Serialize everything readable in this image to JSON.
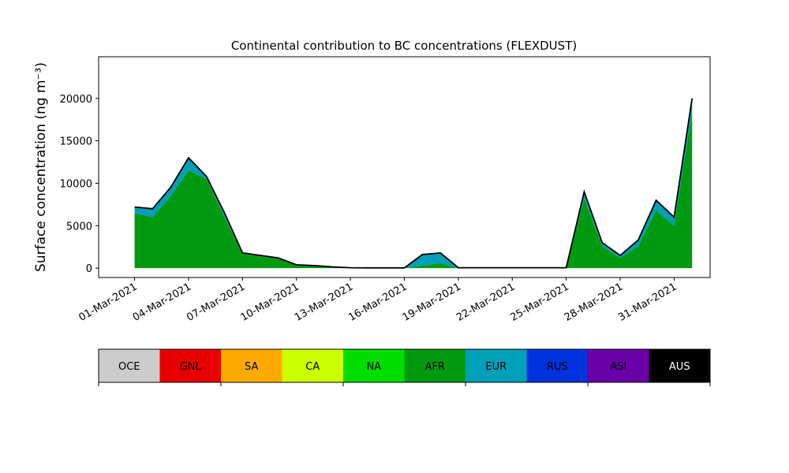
{
  "chart_data": {
    "type": "stacked_area",
    "title": "Continental contribution to BC concentrations (FLEXDUST)",
    "ylabel": "Surface concentration (ng m⁻³)",
    "x": [
      "2021-03-01",
      "2021-03-02",
      "2021-03-03",
      "2021-03-04",
      "2021-03-05",
      "2021-03-06",
      "2021-03-07",
      "2021-03-08",
      "2021-03-09",
      "2021-03-10",
      "2021-03-11",
      "2021-03-12",
      "2021-03-13",
      "2021-03-14",
      "2021-03-15",
      "2021-03-16",
      "2021-03-17",
      "2021-03-18",
      "2021-03-19",
      "2021-03-20",
      "2021-03-21",
      "2021-03-22",
      "2021-03-23",
      "2021-03-24",
      "2021-03-25",
      "2021-03-26",
      "2021-03-27",
      "2021-03-28",
      "2021-03-29",
      "2021-03-30",
      "2021-03-31",
      "2021-04-01"
    ],
    "series": [
      {
        "name": "AFR",
        "color": "#009a10",
        "values": [
          6500,
          6000,
          8500,
          11500,
          10500,
          6000,
          1700,
          1400,
          1100,
          380,
          280,
          140,
          45,
          25,
          25,
          20,
          300,
          600,
          20,
          20,
          20,
          20,
          20,
          20,
          20,
          8200,
          2600,
          1200,
          2600,
          6800,
          5000,
          18500
        ]
      },
      {
        "name": "EUR",
        "color": "#00a0b8",
        "values": [
          700,
          1000,
          1000,
          1500,
          300,
          500,
          100,
          100,
          100,
          20,
          20,
          10,
          5,
          5,
          5,
          10,
          1300,
          1200,
          30,
          30,
          30,
          30,
          30,
          30,
          30,
          800,
          400,
          300,
          700,
          1200,
          1000,
          1500
        ]
      }
    ],
    "xlim": [
      "2021-02-27",
      "2021-04-02"
    ],
    "xticks": [
      {
        "value": "2021-03-01",
        "label": "01-Mar-2021"
      },
      {
        "value": "2021-03-04",
        "label": "04-Mar-2021"
      },
      {
        "value": "2021-03-07",
        "label": "07-Mar-2021"
      },
      {
        "value": "2021-03-10",
        "label": "10-Mar-2021"
      },
      {
        "value": "2021-03-13",
        "label": "13-Mar-2021"
      },
      {
        "value": "2021-03-16",
        "label": "16-Mar-2021"
      },
      {
        "value": "2021-03-19",
        "label": "19-Mar-2021"
      },
      {
        "value": "2021-03-22",
        "label": "22-Mar-2021"
      },
      {
        "value": "2021-03-25",
        "label": "25-Mar-2021"
      },
      {
        "value": "2021-03-28",
        "label": "28-Mar-2021"
      },
      {
        "value": "2021-03-31",
        "label": "31-Mar-2021"
      }
    ],
    "ylim": [
      -1100,
      24900
    ],
    "yticks": [
      0,
      5000,
      10000,
      15000,
      20000
    ],
    "outline_color": "#000000",
    "colorbar": {
      "labels": [
        "OCE",
        "GNL",
        "SA",
        "CA",
        "NA",
        "AFR",
        "EUR",
        "RUS",
        "ASI",
        "AUS"
      ],
      "colors": [
        "#cccccc",
        "#e80000",
        "#ffaa00",
        "#ccff00",
        "#00dd00",
        "#009a10",
        "#00a0b8",
        "#0033dd",
        "#6a00a8",
        "#000000"
      ]
    }
  }
}
